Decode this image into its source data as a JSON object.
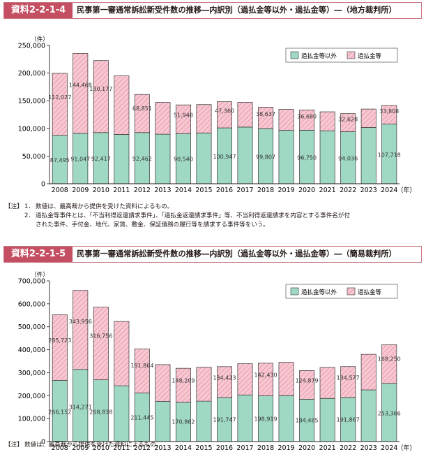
{
  "colors": {
    "accent": "#c44f62",
    "non_overpayment": "#9fd9c4",
    "overpayment": "#f7c8d2",
    "overpayment_hatch": "#e58aa0",
    "bar_stroke": "#333333"
  },
  "figure1": {
    "tag": "資料2-2-1-4",
    "title": "民事第一審通常訴訟新受件数の推移―内訳別（過払金等以外・過払金等）―（地方裁判所）",
    "y_unit": "（件）",
    "notes": [
      {
        "marker": "【注】",
        "num": "1．",
        "text": "数値は、最高裁から提供を受けた資料によるもの。"
      },
      {
        "marker": "",
        "num": "2．",
        "text": "過払金等事件とは、「不当利得返還請求事件」、「過払金返還請求事件」等、不当利得返還請求を内容とする事件名が付"
      },
      {
        "marker": "",
        "num": "",
        "text": "された事件、手付金、地代、家賃、敷金、保証債務の履行等を請求する事件等をいう。"
      }
    ],
    "chart_data": {
      "type": "bar",
      "stacked": true,
      "categories": [
        "2008",
        "2009",
        "2010",
        "2011",
        "2012",
        "2013",
        "2014",
        "2015",
        "2016",
        "2017",
        "2018",
        "2019",
        "2020",
        "2021",
        "2022",
        "2023",
        "2024"
      ],
      "x_unit": "（年）",
      "ylim": [
        0,
        250000
      ],
      "yticks": [
        "0",
        "50,000",
        "100,000",
        "150,000",
        "200,000",
        "250,000"
      ],
      "legend_position": "top-right",
      "grid": false,
      "series": [
        {
          "name": "過払金等以外",
          "color": "#9fd9c4",
          "values": [
            87495,
            91047,
            92417,
            89000,
            92462,
            89500,
            90540,
            91800,
            100947,
            102400,
            99807,
            96500,
            96750,
            95800,
            94036,
            101600,
            107718
          ],
          "labels": [
            "87,495",
            "91,047",
            "92,417",
            "",
            "92,462",
            "",
            "90,540",
            "",
            "100,947",
            "",
            "99,807",
            "",
            "96,750",
            "",
            "94,036",
            "",
            "107,718"
          ]
        },
        {
          "name": "過払金等",
          "color": "#f7c8d2",
          "values": [
            112027,
            144468,
            130177,
            106000,
            68851,
            57500,
            51948,
            51200,
            47360,
            44600,
            38637,
            38000,
            36680,
            34200,
            32628,
            33400,
            33808
          ],
          "labels": [
            "112,027",
            "144,468",
            "130,177",
            "",
            "68,851",
            "",
            "51,948",
            "",
            "47,360",
            "",
            "38,637",
            "",
            "36,680",
            "",
            "32,628",
            "",
            "33,808"
          ]
        }
      ]
    }
  },
  "figure2": {
    "tag": "資料2-2-1-5",
    "title": "民事第一審通常訴訟新受件数の推移―内訳別（過払金等以外・過払金等）―（簡易裁判所）",
    "y_unit": "（件）",
    "notes": [
      {
        "marker": "【注】",
        "num": "",
        "text": "数値は、最高裁から提供を受けた資料によるもの。"
      }
    ],
    "chart_data": {
      "type": "bar",
      "stacked": true,
      "categories": [
        "2008",
        "2009",
        "2010",
        "2011",
        "2012",
        "2013",
        "2014",
        "2015",
        "2016",
        "2017",
        "2018",
        "2019",
        "2020",
        "2021",
        "2022",
        "2023",
        "2024"
      ],
      "x_unit": "（年）",
      "ylim": [
        0,
        700000
      ],
      "yticks": [
        "0",
        "100,000",
        "200,000",
        "300,000",
        "400,000",
        "500,000",
        "600,000",
        "700,000"
      ],
      "legend_position": "top-right",
      "grid": false,
      "series": [
        {
          "name": "過払金等以外",
          "color": "#9fd9c4",
          "values": [
            266152,
            314271,
            268838,
            243000,
            211445,
            175000,
            170862,
            176000,
            191747,
            203000,
            198919,
            200000,
            184485,
            188000,
            191867,
            225000,
            253366
          ],
          "labels": [
            "266,152",
            "314,271",
            "268,838",
            "",
            "211,445",
            "",
            "170,862",
            "",
            "191,747",
            "",
            "198,919",
            "",
            "184,485",
            "",
            "191,867",
            "",
            "253,366"
          ]
        },
        {
          "name": "過払金等",
          "color": "#f7c8d2",
          "values": [
            285723,
            343956,
            316756,
            280000,
            191864,
            160000,
            148209,
            148000,
            134423,
            136000,
            142430,
            145000,
            124879,
            135000,
            134577,
            155000,
            168250
          ],
          "labels": [
            "285,723",
            "343,956",
            "316,756",
            "",
            "191,864",
            "",
            "148,209",
            "",
            "134,423",
            "",
            "142,430",
            "",
            "124,879",
            "",
            "134,577",
            "",
            "168,250"
          ]
        }
      ]
    }
  }
}
